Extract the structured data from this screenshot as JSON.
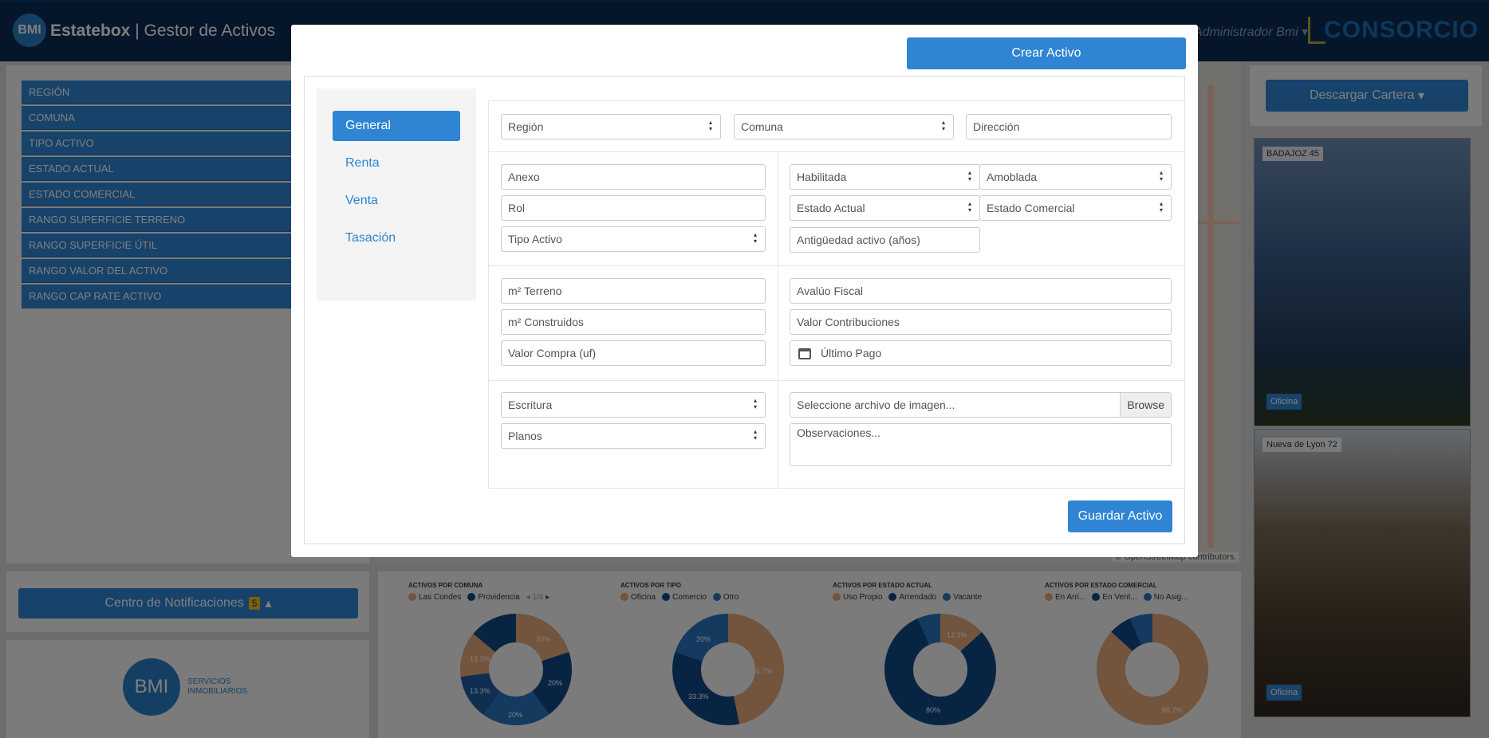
{
  "header": {
    "logo_text": "BMI",
    "brand_bold": "Estatebox",
    "brand_rest": "| Gestor de Activos",
    "user_menu": "Administrador Bmi",
    "partner_logo": "CONSORCIO"
  },
  "filters": [
    "REGIÓN",
    "COMUNA",
    "TIPO ACTIVO",
    "ESTADO ACTUAL",
    "ESTADO COMERCIAL",
    "RANGO SUPERFICIE TERRENO",
    "RANGO SUPERFICIE ÚTIL",
    "RANGO VALOR DEL ACTIVO",
    "RANGO CAP RATE ACTIVO"
  ],
  "map": {
    "credit": "© OpenStreetMap contributors."
  },
  "sidebar": {
    "download_label": "Descargar Cartera",
    "photos": [
      {
        "name": "BADAJOZ 45",
        "type": "Oficina"
      },
      {
        "name": "Nueva de Lyon 72",
        "type": "Oficina"
      }
    ]
  },
  "notifications": {
    "label": "Centro de Notificaciones",
    "count": "5"
  },
  "footer_logo": {
    "text": "BMI",
    "tagline1": "SERVICIOS",
    "tagline2": "INMOBILIARIOS"
  },
  "charts": {
    "comuna": {
      "title": "ACTIVOS POR COMUNA",
      "legend": [
        "Las Condes",
        "Providencia"
      ],
      "pager": "1/4",
      "labels": [
        "20%",
        "20%",
        "20%",
        "13.3%",
        "13.3%"
      ]
    },
    "tipo": {
      "title": "ACTIVOS POR TIPO",
      "legend": [
        "Oficina",
        "Comercio",
        "Otro"
      ],
      "labels": [
        "46.7%",
        "33.3%",
        "20%"
      ]
    },
    "estado_actual": {
      "title": "ACTIVOS POR ESTADO ACTUAL",
      "legend": [
        "Uso Propio",
        "Arrendado",
        "Vacante"
      ],
      "labels": [
        "13.3%",
        "80%"
      ]
    },
    "estado_comercial": {
      "title": "ACTIVOS POR ESTADO COMERCIAL",
      "legend": [
        "En Arri...",
        "En Vent...",
        "No Asig..."
      ],
      "labels": [
        "86.7%"
      ]
    }
  },
  "colors": {
    "primary": "#2f85d4",
    "navy": "#0a2d57",
    "orange": "#e7a878",
    "dark_blue": "#0e4a86",
    "mid_blue": "#2a74c0"
  },
  "modal": {
    "create_label": "Crear Activo",
    "tabs": [
      "General",
      "Renta",
      "Venta",
      "Tasación"
    ],
    "fields": {
      "region": "Región",
      "comuna": "Comuna",
      "direccion": "Dirección",
      "anexo": "Anexo",
      "rol": "Rol",
      "tipo_activo": "Tipo Activo",
      "habilitada": "Habilitada",
      "amoblada": "Amoblada",
      "estado_actual": "Estado Actual",
      "estado_comercial": "Estado Comercial",
      "antiguedad": "Antigüedad activo (años)",
      "m2_terreno": "m² Terreno",
      "m2_construidos": "m² Construidos",
      "valor_compra": "Valor Compra (uf)",
      "avaluo_fiscal": "Avalúo Fiscal",
      "valor_contribuciones": "Valor Contribuciones",
      "ultimo_pago": "Último Pago",
      "escritura": "Escritura",
      "planos": "Planos",
      "archivo_imagen": "Seleccione archivo de imagen...",
      "browse": "Browse",
      "observaciones": "Observaciones..."
    },
    "save_label": "Guardar Activo"
  }
}
